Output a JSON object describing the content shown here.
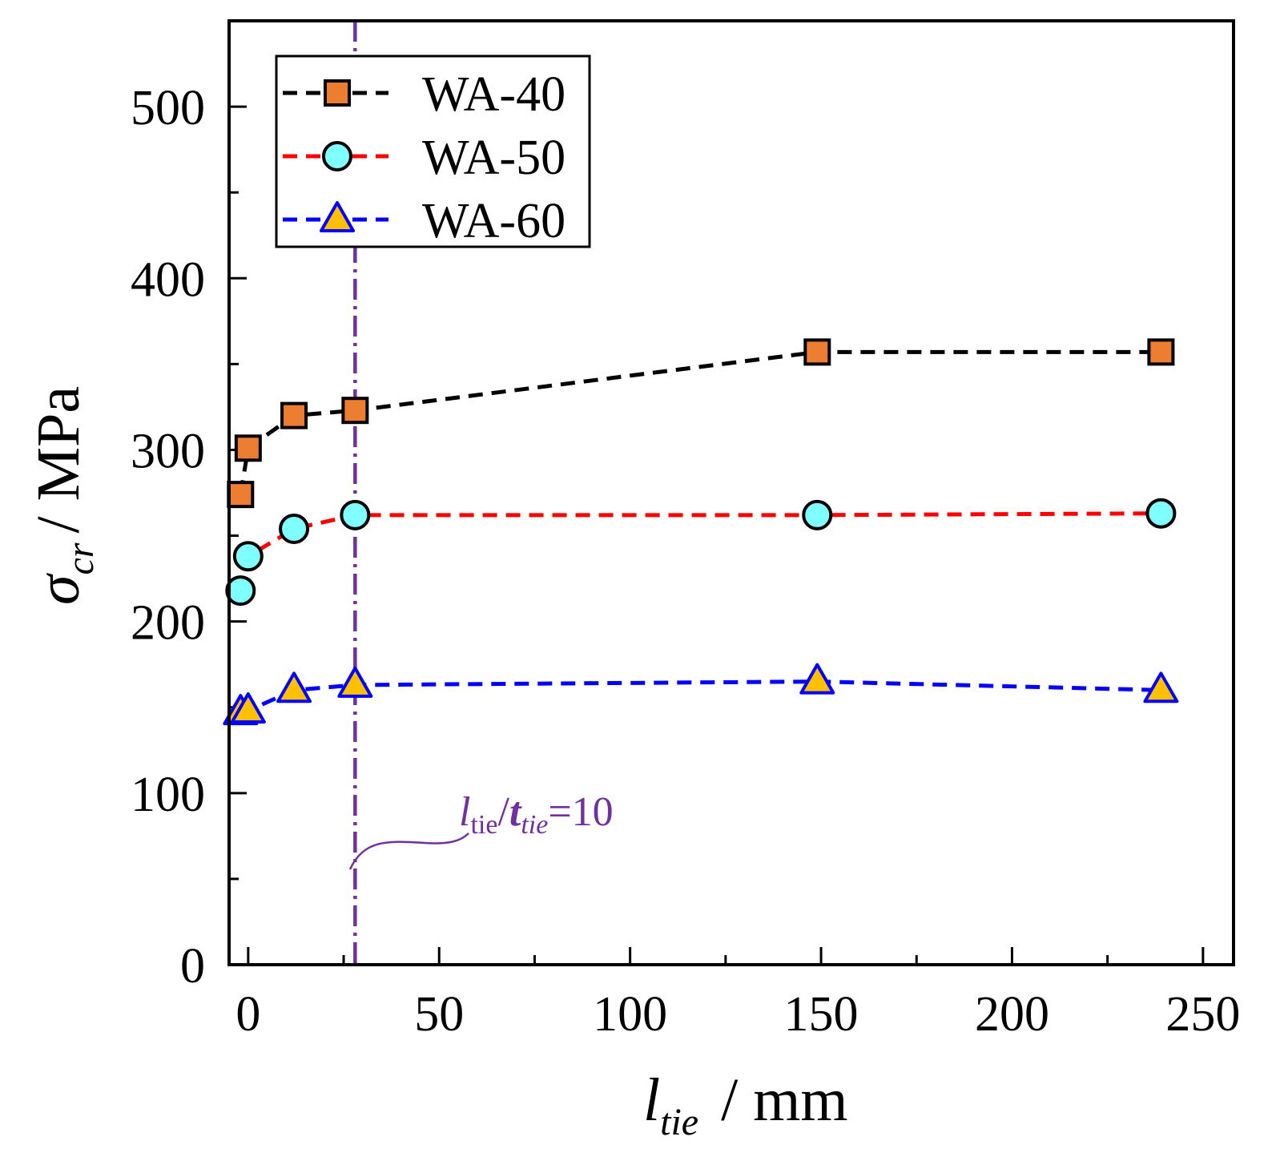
{
  "chart_data": {
    "type": "line",
    "title": "",
    "xlabel": {
      "main": "l",
      "sub": "tie",
      "unit": "/ mm"
    },
    "ylabel": {
      "main": "σ",
      "sub": "cr",
      "unit": "/ MPa"
    },
    "xlim": [
      -5,
      258
    ],
    "ylim": [
      0,
      550
    ],
    "xticks": [
      0,
      50,
      100,
      150,
      200,
      250
    ],
    "yticks": [
      0,
      100,
      200,
      300,
      400,
      500
    ],
    "x_minor_ticks": [
      25,
      75,
      125,
      175,
      225
    ],
    "y_minor_ticks": [
      50,
      150,
      250,
      350,
      450
    ],
    "legend_position": "top-left",
    "series": [
      {
        "name": "WA-40",
        "line_color": "#000000",
        "marker": "square",
        "marker_fill": "#ED7D31",
        "marker_edge": "#000000",
        "x": [
          -2,
          0,
          12,
          28,
          149,
          239
        ],
        "y": [
          274,
          301,
          320,
          323,
          357,
          357
        ]
      },
      {
        "name": "WA-50",
        "line_color": "#FF0000",
        "marker": "circle",
        "marker_fill": "#7FFFFF",
        "marker_edge": "#000000",
        "x": [
          -2,
          0,
          12,
          28,
          149,
          239
        ],
        "y": [
          218,
          238,
          254,
          262,
          262,
          263
        ]
      },
      {
        "name": "WA-60",
        "line_color": "#0000FF",
        "marker": "triangle",
        "marker_fill": "#FFC000",
        "marker_edge": "#0000FF",
        "x": [
          -2,
          0,
          12,
          28,
          149,
          239
        ],
        "y": [
          147,
          148,
          160,
          163,
          165,
          160
        ]
      }
    ],
    "reference_line": {
      "x": 28,
      "color": "#7030A0",
      "style": "dash-dot"
    },
    "annotation": {
      "l": "l",
      "l_sub": "tie",
      "slash": "/",
      "t": "t",
      "t_sub": "tie",
      "value": "=10",
      "color": "#7030A0"
    }
  }
}
